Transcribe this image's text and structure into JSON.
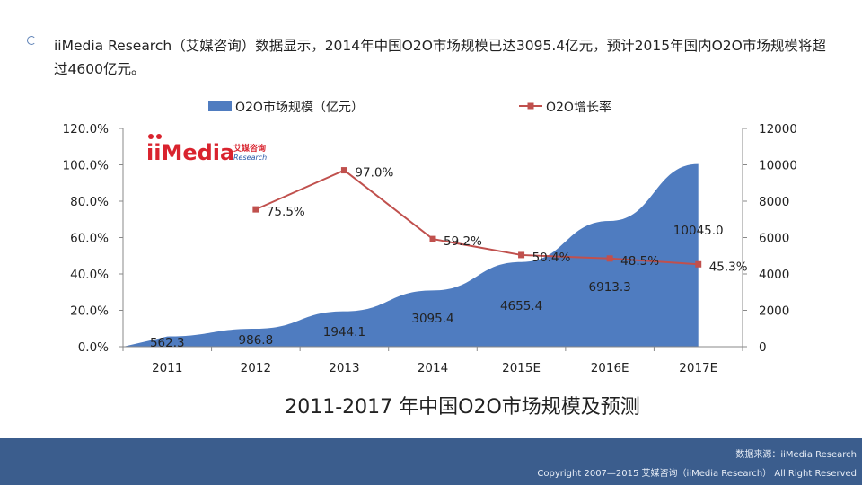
{
  "intro": {
    "text": "iiMedia Research（艾媒咨询）数据显示，2014年中国O2O市场规模已达3095.4亿元，预计2015年国内O2O市场规模将超过4600亿元。"
  },
  "logo": {
    "brand": "iiMedia",
    "cn_name": "艾媒咨询",
    "sub": "Research"
  },
  "chart_data": {
    "type": "area+line",
    "title": "2011-2017 年中国O2O市场规模及预测",
    "categories": [
      "2011",
      "2012",
      "2013",
      "2014",
      "2015E",
      "2016E",
      "2017E"
    ],
    "series": [
      {
        "name": "O2O市场规模（亿元）",
        "type": "area",
        "axis": "right",
        "color": "#4f7cc0",
        "values": [
          562.3,
          986.8,
          1944.1,
          3095.4,
          4655.4,
          6913.3,
          10045.0
        ],
        "labels": [
          "562.3",
          "986.8",
          "1944.1",
          "3095.4",
          "4655.4",
          "6913.3",
          "10045.0"
        ]
      },
      {
        "name": "O2O增长率",
        "type": "line",
        "axis": "left",
        "color": "#c0504d",
        "values": [
          null,
          75.5,
          97.0,
          59.2,
          50.4,
          48.5,
          45.3
        ],
        "labels": [
          null,
          "75.5%",
          "97.0%",
          "59.2%",
          "50.4%",
          "48.5%",
          "45.3%"
        ]
      }
    ],
    "left_axis": {
      "range": [
        0,
        120
      ],
      "ticks": [
        "0.0%",
        "20.0%",
        "40.0%",
        "60.0%",
        "80.0%",
        "100.0%",
        "120.0%"
      ]
    },
    "right_axis": {
      "range": [
        0,
        12000
      ],
      "ticks": [
        "0",
        "2000",
        "4000",
        "6000",
        "8000",
        "10000",
        "12000"
      ]
    },
    "legend_position": "top"
  },
  "footer": {
    "source": "数据来源：iiMedia Research",
    "copyright": "Copyright 2007—2015 艾媒咨询（iiMedia Research） All Right Reserved"
  }
}
